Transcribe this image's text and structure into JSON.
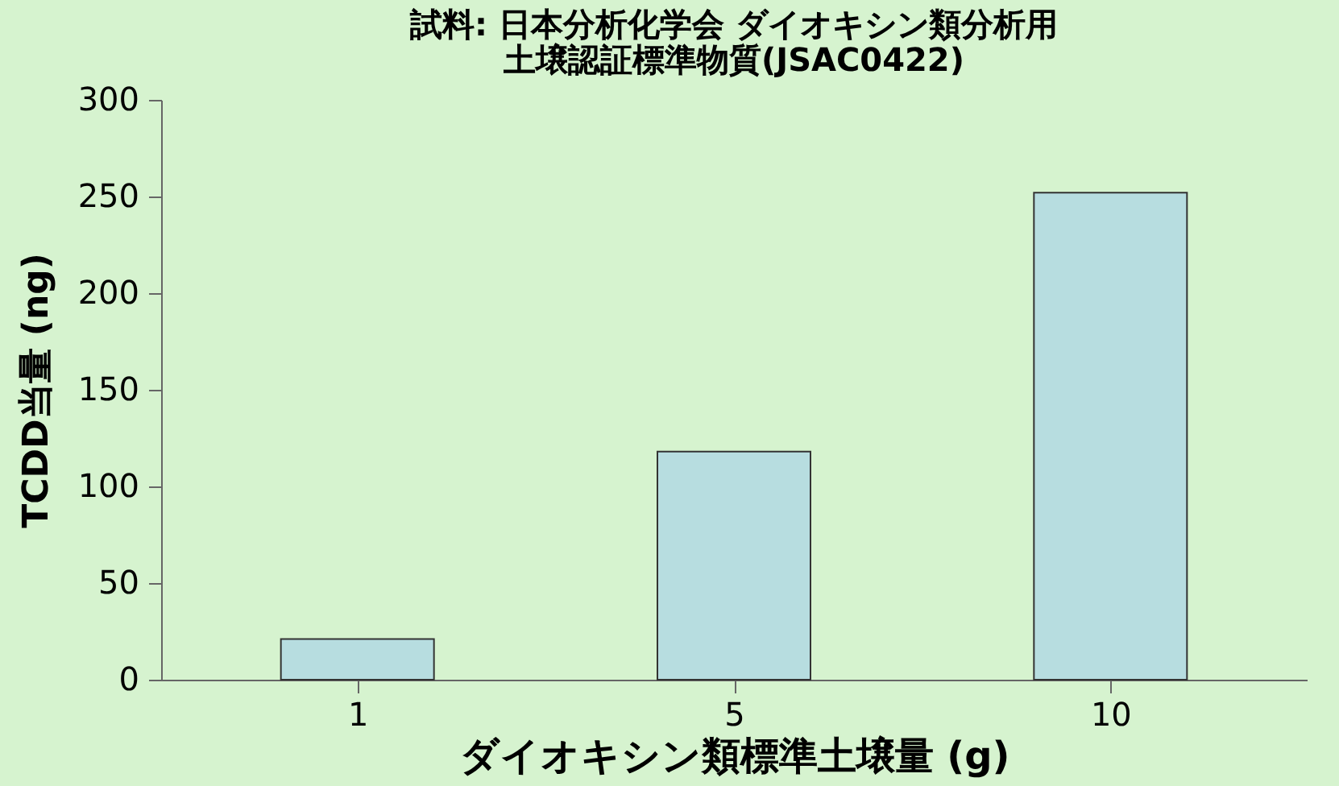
{
  "chart_data": {
    "type": "bar",
    "title": [
      "試料: 日本分析化学会 ダイオキシン類分析用",
      "土壌認証標準物質(JSAC0422)"
    ],
    "xlabel": "ダイオキシン類標準土壌量 (g)",
    "ylabel": "TCDD当量 (ng)",
    "categories": [
      "1",
      "5",
      "10"
    ],
    "values": [
      21,
      118,
      252
    ],
    "color": "#b7dde0",
    "ylim": [
      0,
      300
    ],
    "yticks": [
      0,
      50,
      100,
      150,
      200,
      250,
      300
    ],
    "grid": false
  }
}
